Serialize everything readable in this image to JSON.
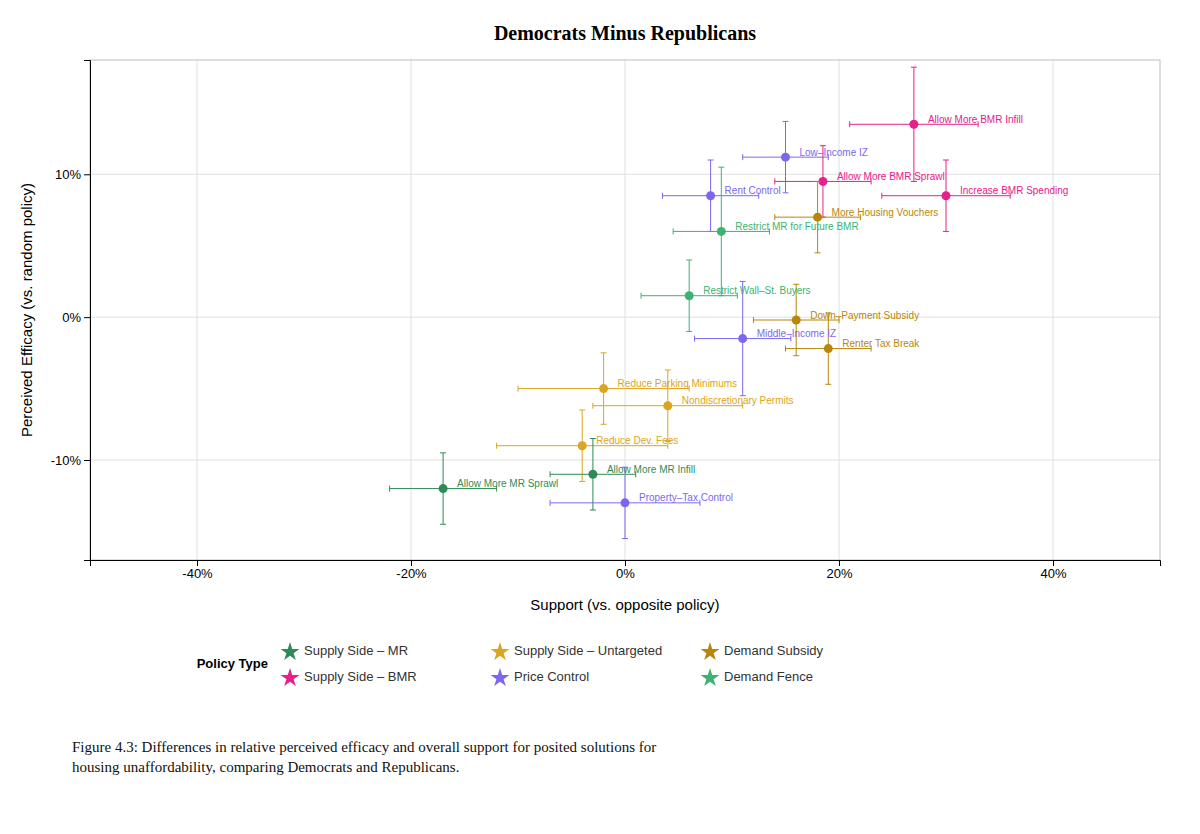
{
  "chart_data": {
    "type": "scatter",
    "title": "Democrats Minus Republicans",
    "xlabel": "Support (vs. opposite policy)",
    "ylabel": "Perceived Efficacy (vs. random policy)",
    "caption": "Figure 4.3:  Differences in relative perceived efficacy and overall support for posited solutions for\nhousing unaffordability, comparing Democrats and Republicans.",
    "xlim": [
      -50,
      50
    ],
    "ylim": [
      -17,
      18
    ],
    "xticks": [
      {
        "value": -40,
        "label": "-40%"
      },
      {
        "value": -20,
        "label": "-20%"
      },
      {
        "value": 0,
        "label": "0%"
      },
      {
        "value": 20,
        "label": "20%"
      },
      {
        "value": 40,
        "label": "40%"
      }
    ],
    "yticks": [
      {
        "value": -10,
        "label": "-10%"
      },
      {
        "value": 0,
        "label": "0%"
      },
      {
        "value": 10,
        "label": "10%"
      }
    ],
    "grid": true,
    "legend": "bottom",
    "labels": [
      "Allow More BMR Infill",
      "Low–Income IZ",
      "Allow More BMR Sprawl",
      "Increase BMR Spending",
      "Rent Control",
      "More Housing Vouchers",
      "Restrict MR for Future BMR",
      "Restrict Wall–St. Buyers",
      "Down–Payment Subsidy",
      "Middle–Income IZ",
      "Renter Tax Break",
      "Reduce Parking Minimums",
      "Nondiscretionary Permits",
      "Reduce Dev. Fees",
      "Allow More MR Infill",
      "Allow More MR Sprawl",
      "Property–Tax Control"
    ],
    "x": [
      27,
      15,
      18.5,
      30,
      8,
      18,
      9,
      6,
      16,
      11,
      19,
      -2,
      4,
      -4,
      -3,
      -17,
      0
    ],
    "values": [
      13.5,
      11.2,
      9.5,
      8.5,
      8.5,
      7.0,
      6.0,
      1.5,
      -0.2,
      -1.5,
      -2.2,
      -5.0,
      -6.2,
      -9.0,
      -11.0,
      -12.0,
      -13.0
    ],
    "xerr": [
      6,
      4,
      4.5,
      6,
      4.5,
      4,
      4.5,
      4.5,
      4,
      4.5,
      4,
      8,
      7,
      8,
      4,
      5,
      7
    ],
    "yerr": [
      4,
      2.5,
      2.5,
      2.5,
      2.5,
      2.5,
      4.5,
      2.5,
      2.5,
      4,
      2.5,
      2.5,
      2.5,
      2.5,
      2.5,
      2.5,
      2.5
    ],
    "colors": [
      "#e5218a",
      "#7b68ee",
      "#e5218a",
      "#e5218a",
      "#7b68ee",
      "#b8860b",
      "#3cb371",
      "#3cb371",
      "#b8860b",
      "#7b68ee",
      "#b8860b",
      "#daa520",
      "#daa520",
      "#daa520",
      "#2e8b57",
      "#2e8b57",
      "#7b68ee"
    ],
    "legend_title": "Policy Type",
    "legend_entries": [
      {
        "name": "Supply Side – MR",
        "color": "#2e8b57"
      },
      {
        "name": "Supply Side – Untargeted",
        "color": "#daa520"
      },
      {
        "name": "Demand Subsidy",
        "color": "#b8860b"
      },
      {
        "name": "Supply Side – BMR",
        "color": "#e5218a"
      },
      {
        "name": "Price Control",
        "color": "#7b68ee"
      },
      {
        "name": "Demand Fence",
        "color": "#3cb371"
      }
    ]
  }
}
